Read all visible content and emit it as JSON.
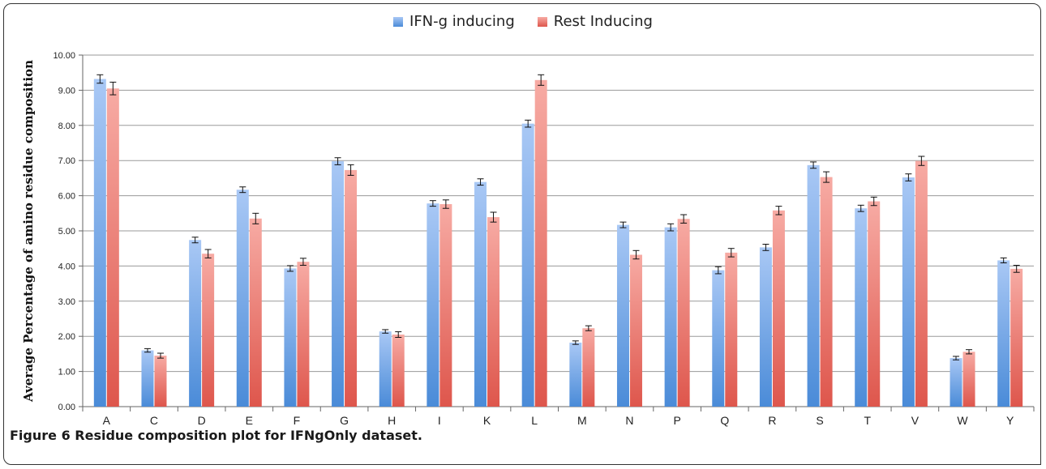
{
  "chart_data": {
    "type": "bar",
    "title": "",
    "xlabel": "",
    "ylabel": "Average Percentage of amino residue composition",
    "ylim": [
      0,
      10
    ],
    "yticks": [
      "0.00",
      "1.00",
      "2.00",
      "3.00",
      "4.00",
      "5.00",
      "6.00",
      "7.00",
      "8.00",
      "9.00",
      "10.00"
    ],
    "grid": true,
    "legend_position": "top-center",
    "error_bars": true,
    "categories": [
      "A",
      "C",
      "D",
      "E",
      "F",
      "G",
      "H",
      "I",
      "K",
      "L",
      "M",
      "N",
      "P",
      "Q",
      "R",
      "S",
      "T",
      "V",
      "W",
      "Y"
    ],
    "series": [
      {
        "name": "IFN-g inducing",
        "color": "#4a8bd8",
        "color_light": "#a9c8f5",
        "values": [
          9.32,
          1.6,
          4.74,
          6.17,
          3.93,
          6.98,
          2.14,
          5.78,
          6.39,
          8.05,
          1.82,
          5.17,
          5.1,
          3.88,
          4.53,
          6.87,
          5.64,
          6.52,
          1.38,
          4.16
        ],
        "errors": [
          0.12,
          0.05,
          0.08,
          0.08,
          0.08,
          0.1,
          0.05,
          0.08,
          0.09,
          0.1,
          0.05,
          0.08,
          0.1,
          0.1,
          0.09,
          0.09,
          0.09,
          0.1,
          0.05,
          0.07
        ]
      },
      {
        "name": "Rest Inducing",
        "color": "#de564c",
        "color_light": "#f7aba4",
        "values": [
          9.05,
          1.45,
          4.35,
          5.35,
          4.12,
          6.73,
          2.05,
          5.76,
          5.39,
          9.29,
          2.23,
          4.32,
          5.34,
          4.38,
          5.58,
          6.53,
          5.84,
          6.99,
          1.56,
          3.92
        ],
        "errors": [
          0.18,
          0.07,
          0.12,
          0.15,
          0.1,
          0.15,
          0.08,
          0.12,
          0.14,
          0.15,
          0.07,
          0.12,
          0.12,
          0.12,
          0.12,
          0.15,
          0.12,
          0.13,
          0.06,
          0.1
        ]
      }
    ]
  },
  "caption": {
    "text": "Figure 6 Residue composition plot for IFNgOnly dataset."
  }
}
